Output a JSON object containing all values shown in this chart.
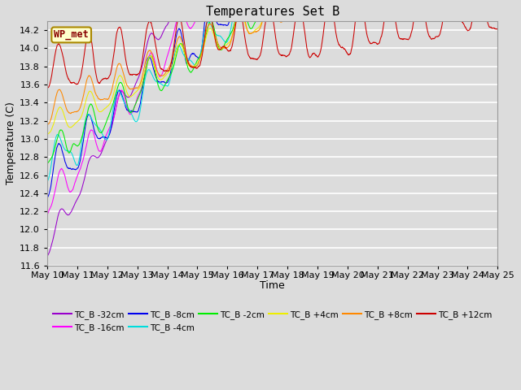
{
  "title": "Temperatures Set B",
  "xlabel": "Time",
  "ylabel": "Temperature (C)",
  "ylim": [
    11.6,
    14.3
  ],
  "background_color": "#dcdcdc",
  "grid_color": "#ffffff",
  "xtick_labels": [
    "May 10",
    "May 11",
    "May 12",
    "May 13",
    "May 14",
    "May 15",
    "May 16",
    "May 17",
    "May 18",
    "May 19",
    "May 20",
    "May 21",
    "May 22",
    "May 23",
    "May 24",
    "May 25"
  ],
  "legend_label": "WP_met",
  "series": [
    {
      "label": "TC_B -32cm",
      "color": "#9900CC",
      "base": 11.78,
      "amp": 0.12,
      "trend": 0.0045,
      "noise": 0.06,
      "seed": 1
    },
    {
      "label": "TC_B -16cm",
      "color": "#FF00FF",
      "base": 12.25,
      "amp": 0.18,
      "trend": 0.003,
      "noise": 0.08,
      "seed": 2
    },
    {
      "label": "TC_B -8cm",
      "color": "#0000EE",
      "base": 12.55,
      "amp": 0.22,
      "trend": 0.0022,
      "noise": 0.09,
      "seed": 3
    },
    {
      "label": "TC_B -4cm",
      "color": "#00DDDD",
      "base": 12.7,
      "amp": 0.17,
      "trend": 0.0018,
      "noise": 0.07,
      "seed": 4
    },
    {
      "label": "TC_B -2cm",
      "color": "#00EE00",
      "base": 12.82,
      "amp": 0.18,
      "trend": 0.0016,
      "noise": 0.07,
      "seed": 5
    },
    {
      "label": "TC_B +4cm",
      "color": "#EEEE00",
      "base": 13.1,
      "amp": 0.14,
      "trend": 0.0012,
      "noise": 0.06,
      "seed": 6
    },
    {
      "label": "TC_B +8cm",
      "color": "#FF8800",
      "base": 13.28,
      "amp": 0.16,
      "trend": 0.001,
      "noise": 0.08,
      "seed": 7
    },
    {
      "label": "TC_B +12cm",
      "color": "#CC0000",
      "base": 13.78,
      "amp": 0.28,
      "trend": 0.0003,
      "noise": 0.1,
      "seed": 8
    }
  ],
  "n_points": 2160,
  "days": 15
}
